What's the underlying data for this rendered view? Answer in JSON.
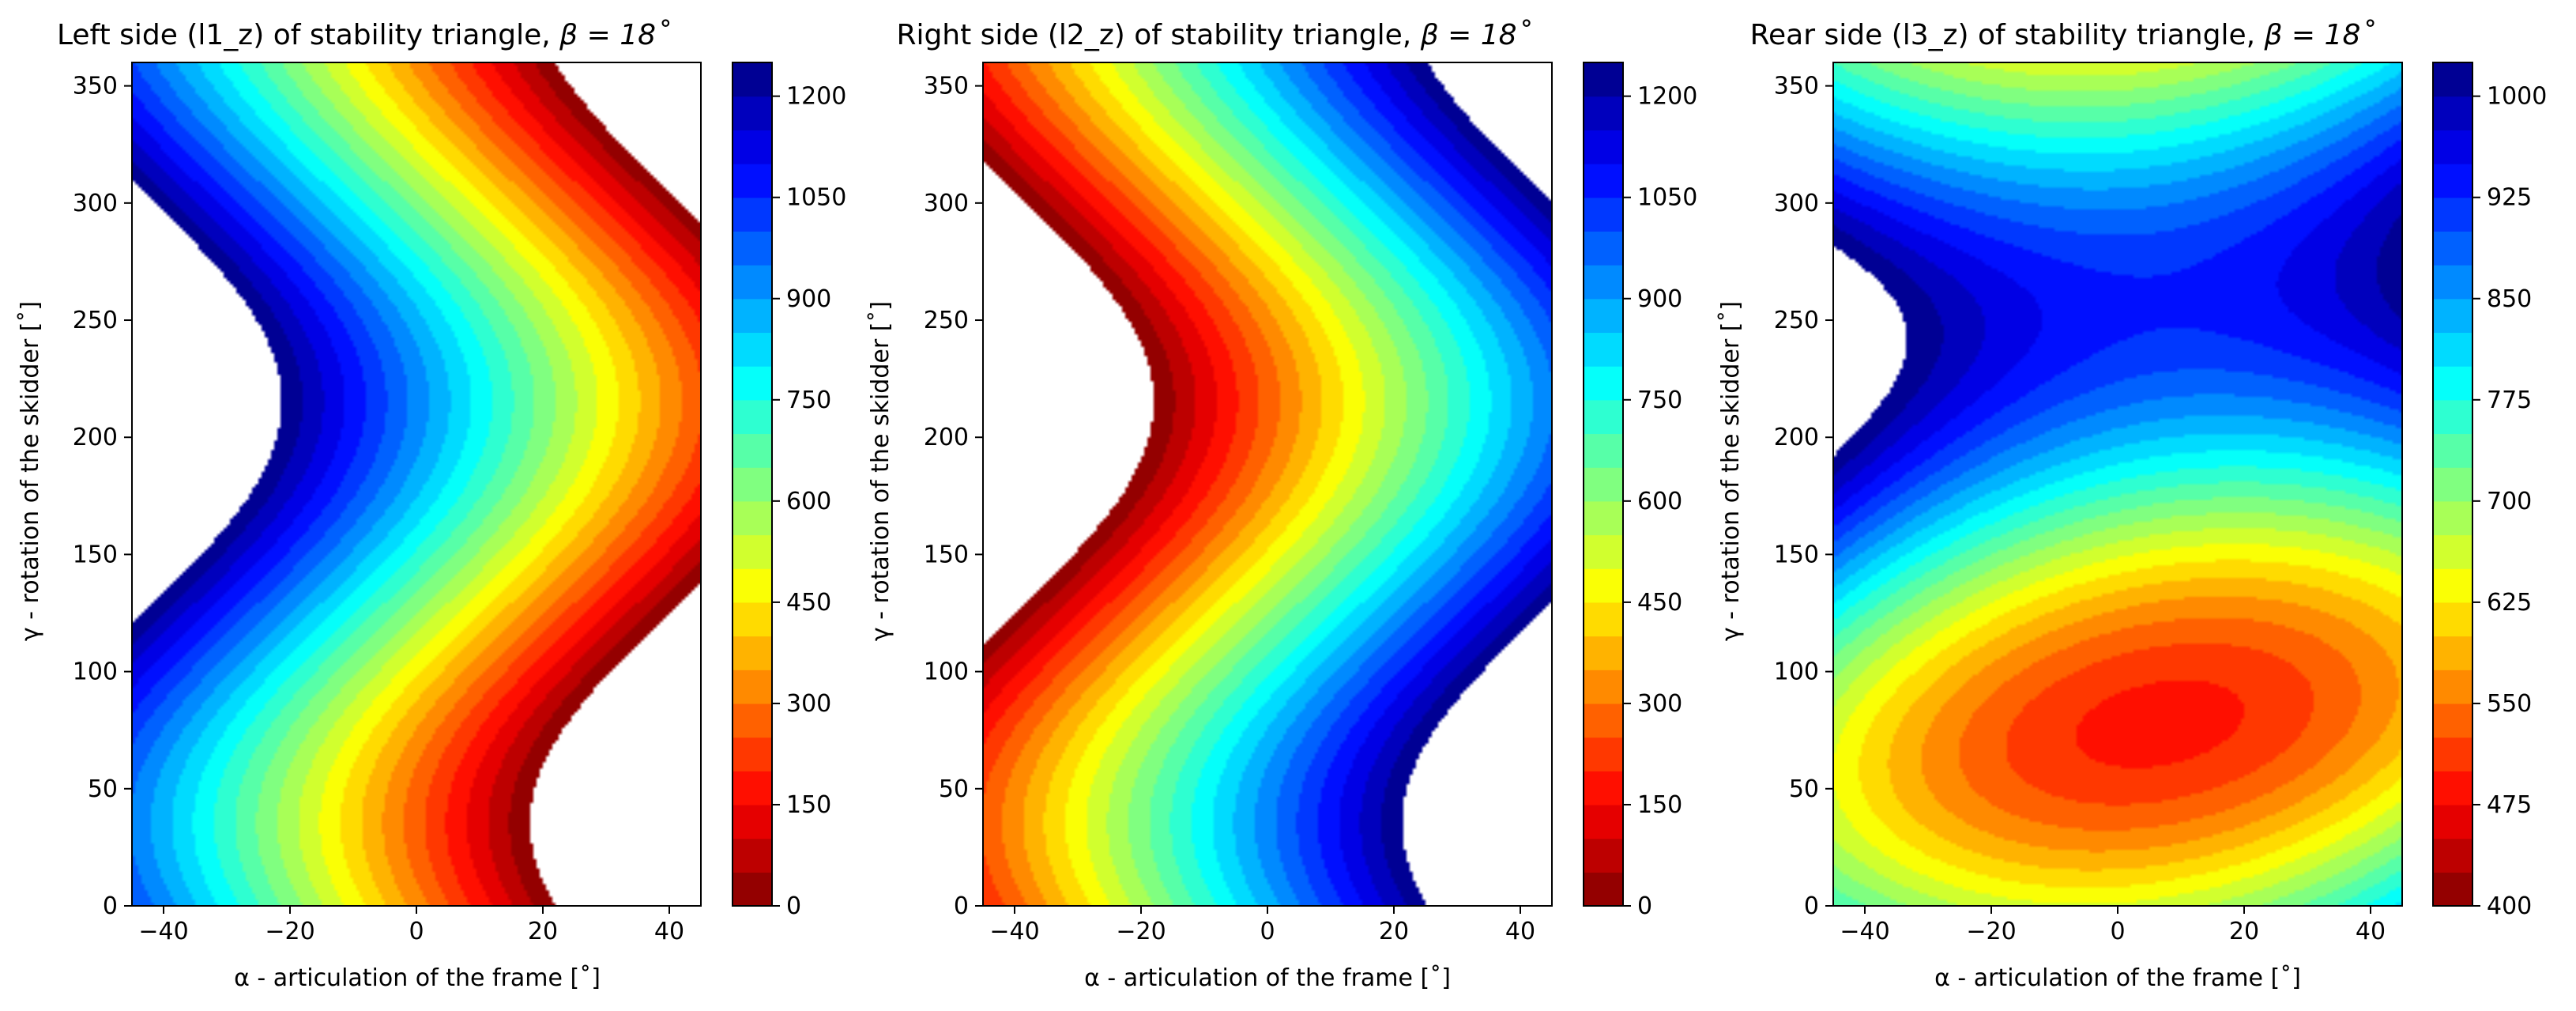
{
  "chart_data": [
    {
      "type": "heatmap",
      "title_prefix": "Left side (l1_z) of stability triangle, ",
      "title_math": "β = 18˚",
      "xlabel": "α - articulation of the frame [˚]",
      "ylabel": "γ - rotation of the skidder [˚]",
      "xlim": [
        -45,
        45
      ],
      "ylim": [
        0,
        360
      ],
      "x_ticks": [
        -40,
        -20,
        0,
        20,
        40
      ],
      "y_ticks": [
        0,
        50,
        100,
        150,
        200,
        250,
        300,
        350
      ],
      "colorbar_range": [
        0,
        1250
      ],
      "colorbar_levels": 25,
      "colorbar_ticks": [
        0,
        150,
        300,
        450,
        600,
        750,
        900,
        1050,
        1200
      ],
      "colormap": "jet_reversed"
    },
    {
      "type": "heatmap",
      "title_prefix": "Right side (l2_z) of stability triangle, ",
      "title_math": "β = 18˚",
      "xlabel": "α - articulation of the frame [˚]",
      "ylabel": "γ - rotation of the skidder [˚]",
      "xlim": [
        -45,
        45
      ],
      "ylim": [
        0,
        360
      ],
      "x_ticks": [
        -40,
        -20,
        0,
        20,
        40
      ],
      "y_ticks": [
        0,
        50,
        100,
        150,
        200,
        250,
        300,
        350
      ],
      "colorbar_range": [
        0,
        1250
      ],
      "colorbar_levels": 25,
      "colorbar_ticks": [
        0,
        150,
        300,
        450,
        600,
        750,
        900,
        1050,
        1200
      ],
      "colormap": "jet_reversed"
    },
    {
      "type": "heatmap",
      "title_prefix": "Rear side (l3_z) of stability triangle, ",
      "title_math": "β = 18˚",
      "xlabel": "α - articulation of the frame [˚]",
      "ylabel": "γ - rotation of the skidder [˚]",
      "xlim": [
        -45,
        45
      ],
      "ylim": [
        0,
        360
      ],
      "x_ticks": [
        -40,
        -20,
        0,
        20,
        40
      ],
      "y_ticks": [
        0,
        50,
        100,
        150,
        200,
        250,
        300,
        350
      ],
      "colorbar_range": [
        400,
        1025
      ],
      "colorbar_levels": 25,
      "colorbar_ticks": [
        400,
        475,
        550,
        625,
        700,
        775,
        850,
        925,
        1000
      ],
      "colormap": "jet_reversed"
    }
  ]
}
